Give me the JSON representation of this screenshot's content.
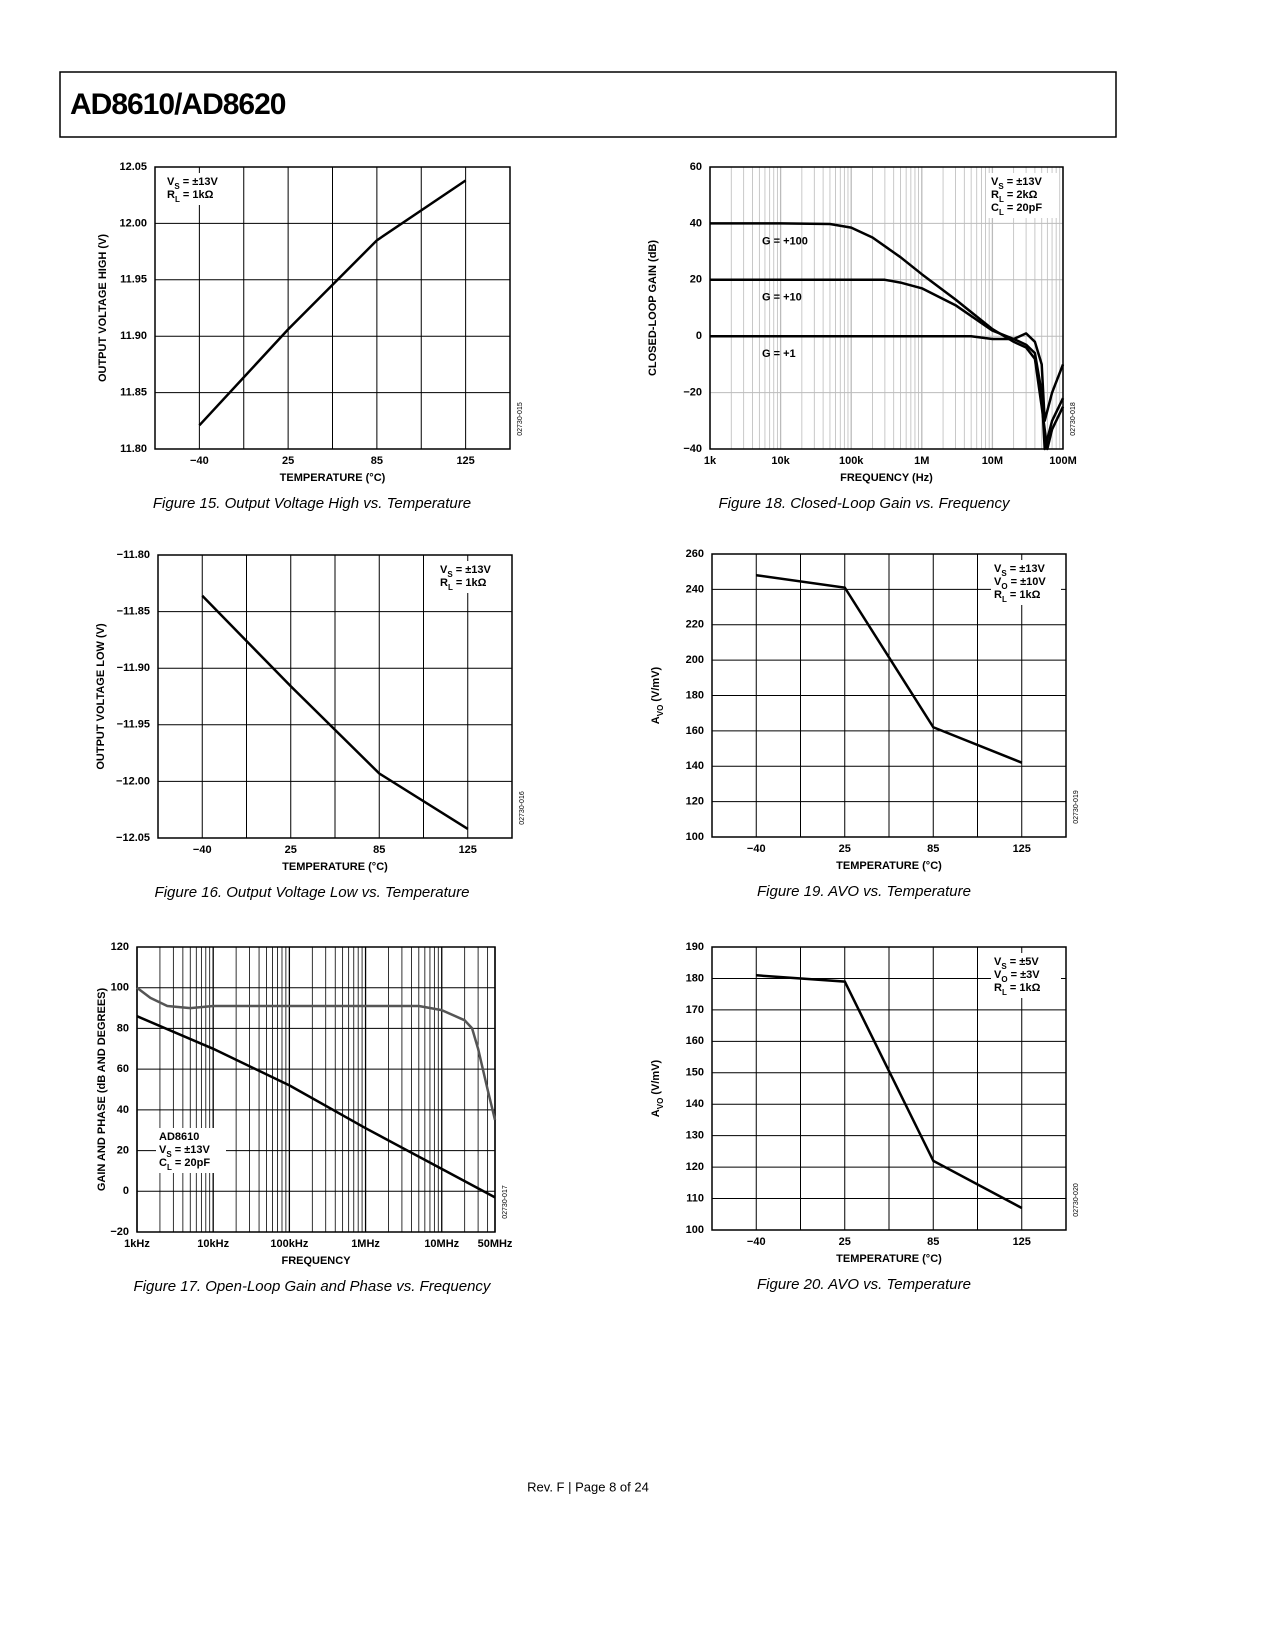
{
  "header": {
    "title": "AD8610/AD8620"
  },
  "footer": {
    "text": "Rev. F | Page 8 of 24"
  },
  "chart_data": [
    {
      "type": "line",
      "title": "Figure 15. Output Voltage High vs. Temperature",
      "xlabel": "TEMPERATURE (°C)",
      "ylabel": "OUTPUT VOLTAGE HIGH (V)",
      "categories": [
        "−40",
        "25",
        "85",
        "125"
      ],
      "values": [
        11.821,
        11.906,
        11.985,
        12.038
      ],
      "color": "#000000",
      "ylim": [
        11.8,
        12.05
      ],
      "yticks": [
        {
          "value": 11.8,
          "label": "11.80"
        },
        11.85,
        {
          "value": 11.9,
          "label": "11.90"
        },
        11.95,
        {
          "value": 12,
          "label": "12.00"
        },
        12.05
      ],
      "grid": true,
      "grid_color": "#000000",
      "annotations": [
        "VS = ±13V",
        "RL = 1kΩ"
      ],
      "annotation_corner": "top-left",
      "code": "02730-015"
    },
    {
      "type": "line",
      "title": "Figure 16. Output Voltage Low vs. Temperature",
      "xlabel": "TEMPERATURE (°C)",
      "ylabel": "OUTPUT VOLTAGE LOW (V)",
      "categories": [
        "−40",
        "25",
        "85",
        "125"
      ],
      "values": [
        -11.836,
        -11.916,
        -11.993,
        -12.042
      ],
      "color": "#000000",
      "ylim": [
        -12.05,
        -11.8
      ],
      "yticks": [
        {
          "value": -12.05,
          "label": "−12.05"
        },
        {
          "value": -12,
          "label": "−12.00"
        },
        {
          "value": -11.95,
          "label": "−11.95"
        },
        {
          "value": -11.9,
          "label": "−11.90"
        },
        {
          "value": -11.85,
          "label": "−11.85"
        },
        {
          "value": -11.8,
          "label": "−11.80"
        }
      ],
      "grid": true,
      "grid_color": "#000000",
      "annotations": [
        "VS = ±13V",
        "RL = 1kΩ"
      ],
      "annotation_corner": "top-right",
      "code": "02730-016"
    },
    {
      "type": "line",
      "title": "Figure 17. Open-Loop Gain and Phase vs. Frequency",
      "xlabel": "FREQUENCY",
      "ylabel": "GAIN AND PHASE (dB AND DEGREES)",
      "xscale": "log",
      "xlim": [
        1000,
        50000000
      ],
      "xticks": [
        {
          "value": 1000,
          "label": "1kHz"
        },
        {
          "value": 10000,
          "label": "10kHz"
        },
        {
          "value": 100000,
          "label": "100kHz"
        },
        {
          "value": 1000000,
          "label": "1MHz"
        },
        {
          "value": 10000000,
          "label": "10MHz"
        },
        {
          "value": 50000000,
          "label": "50MHz"
        }
      ],
      "ylim": [
        -20,
        120
      ],
      "yticks": [
        {
          "value": -20,
          "label": "−20"
        },
        0,
        20,
        40,
        60,
        80,
        100,
        120
      ],
      "series": [
        {
          "color": "#000000",
          "x": [
            1000,
            10000,
            100000,
            1000000,
            10000000,
            50000000
          ],
          "values": [
            86,
            70,
            52,
            31,
            11,
            -3
          ]
        },
        {
          "color": "#555555",
          "x": [
            1000,
            1500,
            2500,
            5000,
            10000,
            100000,
            1000000,
            5000000,
            10000000,
            20000000,
            25000000,
            30000000,
            40000000,
            50000000
          ],
          "values": [
            100,
            95,
            91,
            90,
            91,
            91,
            91,
            91,
            89,
            84,
            80,
            70,
            50,
            35
          ]
        }
      ],
      "grid": true,
      "grid_color": "#000000",
      "minor_grid": true,
      "annotations": [
        "AD8610",
        "VS = ±13V",
        "CL = 20pF"
      ],
      "annotation_corner": "bottom-left",
      "code": "02730-017"
    },
    {
      "type": "line",
      "title": "Figure 18. Closed-Loop Gain vs. Frequency",
      "xlabel": "FREQUENCY (Hz)",
      "ylabel": "CLOSED-LOOP GAIN (dB)",
      "xscale": "log",
      "xlim": [
        1000,
        100000000
      ],
      "xticks": [
        {
          "value": 1000,
          "label": "1k"
        },
        {
          "value": 10000,
          "label": "10k"
        },
        {
          "value": 100000,
          "label": "100k"
        },
        {
          "value": 1000000,
          "label": "1M"
        },
        {
          "value": 10000000,
          "label": "10M"
        },
        {
          "value": 100000000,
          "label": "100M"
        }
      ],
      "ylim": [
        -40,
        60
      ],
      "yticks": [
        {
          "value": -40,
          "label": "−40"
        },
        {
          "value": -20,
          "label": "−20"
        },
        0,
        20,
        40,
        60
      ],
      "series": [
        {
          "name": "G = +100",
          "color": "#000000",
          "x": [
            1000,
            10000,
            50000,
            100000,
            200000,
            500000,
            1000000,
            3000000,
            10000000,
            20000000,
            30000000,
            40000000,
            50000000,
            60000000,
            70000000,
            100000000
          ],
          "values": [
            40,
            40,
            39.8,
            38.5,
            35,
            28,
            22,
            13,
            2.5,
            -2,
            -4,
            -8,
            -25,
            -40,
            -33,
            -25
          ]
        },
        {
          "name": "G = +10",
          "color": "#000000",
          "x": [
            1000,
            10000,
            100000,
            300000,
            500000,
            1000000,
            3000000,
            10000000,
            20000000,
            30000000,
            40000000,
            50000000,
            55000000,
            70000000,
            100000000
          ],
          "values": [
            20,
            20,
            20,
            20,
            19,
            17,
            11,
            2,
            -1,
            -3,
            -6,
            -20,
            -40,
            -30,
            -22
          ]
        },
        {
          "name": "G = +1",
          "color": "#000000",
          "x": [
            1000,
            10000,
            100000,
            1000000,
            5000000,
            10000000,
            20000000,
            30000000,
            40000000,
            50000000,
            55000000,
            70000000,
            100000000
          ],
          "values": [
            0,
            0,
            0,
            0,
            0,
            -1,
            -1,
            1,
            -2,
            -10,
            -30,
            -20,
            -10
          ]
        }
      ],
      "grid": true,
      "grid_color": "#bbbbbb",
      "minor_grid": true,
      "annotations": [
        "VS = ±13V",
        "RL = 2kΩ",
        "CL = 20pF"
      ],
      "annotation_corner": "top-right",
      "code": "02730-018"
    },
    {
      "type": "line",
      "title": "Figure 19. AVO vs. Temperature",
      "xlabel": "TEMPERATURE (°C)",
      "ylabel": "AVO (V/mV)",
      "categories": [
        "−40",
        "25",
        "85",
        "125"
      ],
      "values": [
        248,
        241,
        162,
        142
      ],
      "color": "#000000",
      "ylim": [
        100,
        260
      ],
      "yticks": [
        100,
        120,
        140,
        160,
        180,
        200,
        220,
        240,
        260
      ],
      "grid": true,
      "grid_color": "#000000",
      "annotations": [
        "VS = ±13V",
        "VO = ±10V",
        "RL = 1kΩ"
      ],
      "annotation_corner": "top-right",
      "code": "02730-019"
    },
    {
      "type": "line",
      "title": "Figure 20. AVO vs. Temperature",
      "xlabel": "TEMPERATURE (°C)",
      "ylabel": "AVO (V/mV)",
      "categories": [
        "−40",
        "25",
        "85",
        "125"
      ],
      "values": [
        181,
        179,
        122,
        107
      ],
      "color": "#000000",
      "ylim": [
        100,
        190
      ],
      "yticks": [
        100,
        110,
        120,
        130,
        140,
        150,
        160,
        170,
        180,
        190
      ],
      "grid": true,
      "grid_color": "#000000",
      "annotations": [
        "VS = ±5V",
        "VO = ±3V",
        "RL = 1kΩ"
      ],
      "annotation_corner": "top-right",
      "code": "02730-020"
    }
  ]
}
